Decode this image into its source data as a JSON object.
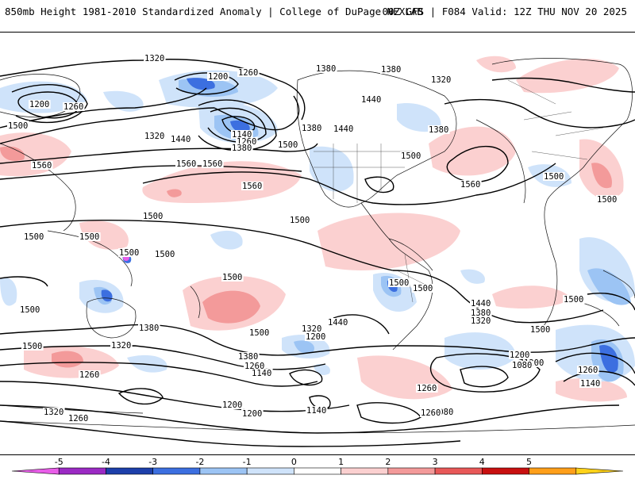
{
  "header": {
    "title": "850mb Height 1981-2010 Standardized Anomaly | College of DuPage NEXLAB",
    "run_info": "00Z GFS | F084 Valid: 12Z THU NOV 20 2025"
  },
  "contour_labels": [
    "1320",
    "1380",
    "1200",
    "1260",
    "1380",
    "1320",
    "1440",
    "1380",
    "1200",
    "1260",
    "1380",
    "1500",
    "1320",
    "1440",
    "1500",
    "1140",
    "1260",
    "1380",
    "1500",
    "1440",
    "1560",
    "1560",
    "1560",
    "1500",
    "1560",
    "1500",
    "1500",
    "1560",
    "1500",
    "1500",
    "1500",
    "1500",
    "1500",
    "1500",
    "1500",
    "1500",
    "1500",
    "1500",
    "1500",
    "1440",
    "1380",
    "1320",
    "1500",
    "1440",
    "1380",
    "1500",
    "1320",
    "1200",
    "1500",
    "1260",
    "1380",
    "1260",
    "1140",
    "1320",
    "1260",
    "1200",
    "1200",
    "1080",
    "1260",
    "1140",
    "1200",
    "1140",
    "1200",
    "1320",
    "1260",
    "1080",
    "1260"
  ],
  "legend": {
    "ticks": [
      "-5",
      "-4",
      "-3",
      "-2",
      "-1",
      "0",
      "1",
      "2",
      "3",
      "4",
      "5"
    ],
    "colors": [
      "#e85de8",
      "#9b2ac4",
      "#1d3faa",
      "#3c6fe0",
      "#9cc4f4",
      "#cfe3fa",
      "#ffffff",
      "#fbd0d0",
      "#f39a9a",
      "#e85858",
      "#c81010",
      "#ff9f1a",
      "#ffd21a"
    ]
  }
}
